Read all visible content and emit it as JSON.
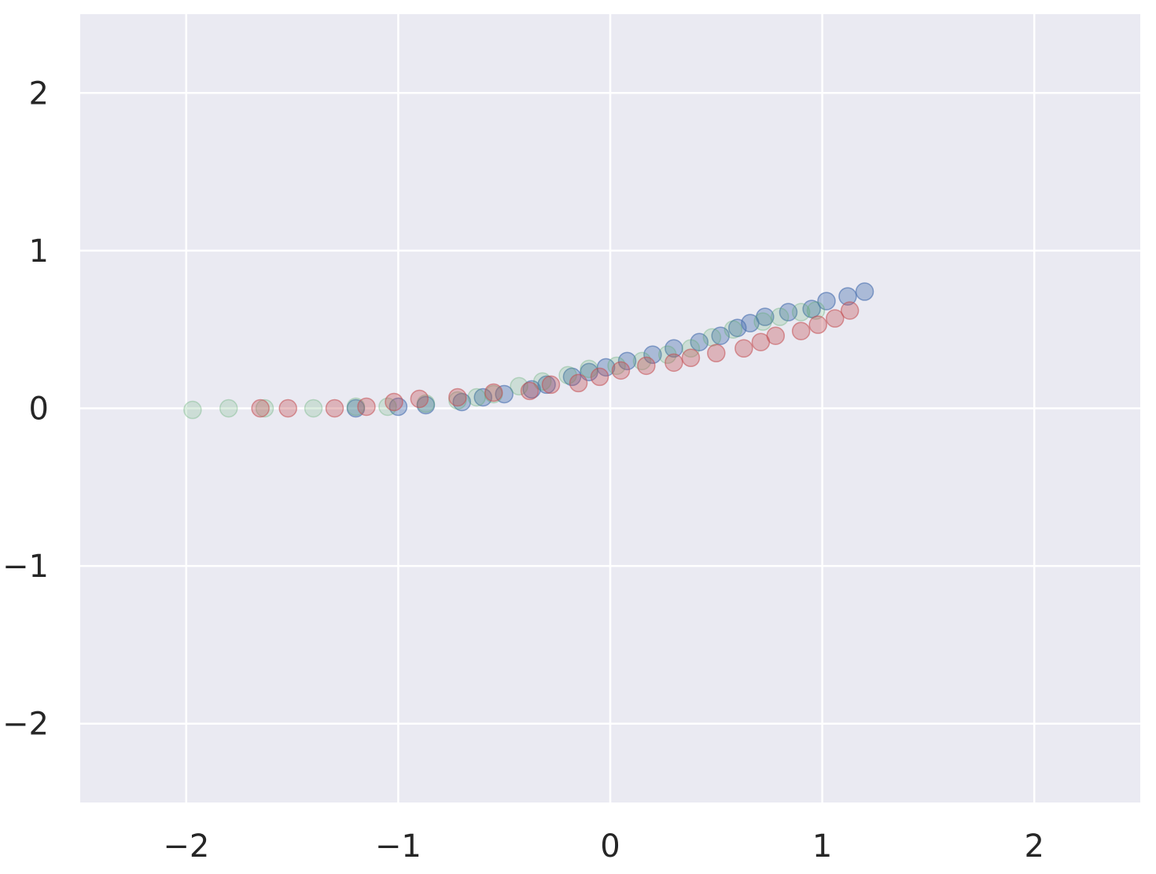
{
  "chart_data": {
    "type": "scatter",
    "title": "",
    "xlabel": "",
    "ylabel": "",
    "xlim": [
      -2.5,
      2.5
    ],
    "ylim": [
      -2.5,
      2.5
    ],
    "grid": true,
    "xticks": [
      -2,
      -1,
      0,
      1,
      2
    ],
    "yticks": [
      -2,
      -1,
      0,
      1,
      2
    ],
    "xtick_labels": [
      "−2",
      "−1",
      "0",
      "1",
      "2"
    ],
    "ytick_labels": [
      "−2",
      "−1",
      "0",
      "1",
      "2"
    ],
    "colors": {
      "background": "#eaeaf2",
      "grid": "#ffffff",
      "blue": "#4c72b0",
      "green": "#55a868",
      "red": "#c44e52"
    },
    "series": [
      {
        "color": "#4c72b0",
        "alpha": 0.4,
        "points": [
          [
            -1.2,
            0.0
          ],
          [
            -1.0,
            0.01
          ],
          [
            -0.87,
            0.02
          ],
          [
            -0.7,
            0.04
          ],
          [
            -0.6,
            0.07
          ],
          [
            -0.5,
            0.09
          ],
          [
            -0.37,
            0.12
          ],
          [
            -0.3,
            0.15
          ],
          [
            -0.18,
            0.2
          ],
          [
            -0.1,
            0.23
          ],
          [
            -0.02,
            0.26
          ],
          [
            0.08,
            0.3
          ],
          [
            0.2,
            0.34
          ],
          [
            0.3,
            0.38
          ],
          [
            0.42,
            0.42
          ],
          [
            0.52,
            0.46
          ],
          [
            0.6,
            0.51
          ],
          [
            0.66,
            0.54
          ],
          [
            0.73,
            0.58
          ],
          [
            0.84,
            0.61
          ],
          [
            0.95,
            0.63
          ],
          [
            1.02,
            0.68
          ],
          [
            1.12,
            0.71
          ],
          [
            1.2,
            0.74
          ]
        ]
      },
      {
        "color": "#55a868",
        "alpha": 0.2,
        "points": [
          [
            -1.97,
            -0.01
          ],
          [
            -1.8,
            0.0
          ],
          [
            -1.63,
            0.0
          ],
          [
            -1.4,
            0.0
          ],
          [
            -1.2,
            0.01
          ],
          [
            -1.05,
            0.01
          ],
          [
            -0.87,
            0.03
          ],
          [
            -0.72,
            0.05
          ],
          [
            -0.63,
            0.07
          ],
          [
            -0.55,
            0.09
          ],
          [
            -0.43,
            0.14
          ],
          [
            -0.32,
            0.17
          ],
          [
            -0.2,
            0.21
          ],
          [
            -0.1,
            0.25
          ],
          [
            0.03,
            0.27
          ],
          [
            0.15,
            0.3
          ],
          [
            0.27,
            0.34
          ],
          [
            0.38,
            0.38
          ],
          [
            0.48,
            0.45
          ],
          [
            0.58,
            0.5
          ],
          [
            0.72,
            0.55
          ],
          [
            0.8,
            0.58
          ],
          [
            0.9,
            0.61
          ],
          [
            0.97,
            0.62
          ]
        ]
      },
      {
        "color": "#c44e52",
        "alpha": 0.35,
        "points": [
          [
            -1.65,
            0.0
          ],
          [
            -1.52,
            0.0
          ],
          [
            -1.3,
            0.0
          ],
          [
            -1.15,
            0.01
          ],
          [
            -1.02,
            0.04
          ],
          [
            -0.9,
            0.06
          ],
          [
            -0.72,
            0.07
          ],
          [
            -0.55,
            0.1
          ],
          [
            -0.38,
            0.11
          ],
          [
            -0.28,
            0.15
          ],
          [
            -0.15,
            0.16
          ],
          [
            -0.05,
            0.2
          ],
          [
            0.05,
            0.24
          ],
          [
            0.17,
            0.27
          ],
          [
            0.3,
            0.29
          ],
          [
            0.38,
            0.32
          ],
          [
            0.5,
            0.35
          ],
          [
            0.63,
            0.38
          ],
          [
            0.71,
            0.42
          ],
          [
            0.78,
            0.46
          ],
          [
            0.9,
            0.49
          ],
          [
            0.98,
            0.53
          ],
          [
            1.06,
            0.57
          ],
          [
            1.13,
            0.62
          ]
        ]
      }
    ]
  }
}
